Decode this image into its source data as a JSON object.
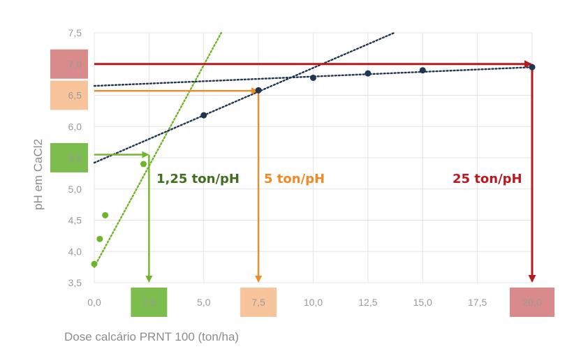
{
  "colors": {
    "background": "#ffffff",
    "grid": "#e3e3e3",
    "tick_text": "#9a9a9a",
    "green": "#6fb52a",
    "green_dark": "#3f6e1f",
    "green_box": "#7cbd4e",
    "orange": "#f08a24",
    "orange_box": "#f8c49c",
    "red": "#b7191f",
    "red_box": "#d98a8a",
    "navy": "#1f3550"
  },
  "chart_data": {
    "type": "scatter",
    "xlabel": "Dose calcário PRNT 100 (ton/ha)",
    "ylabel": "pH em CaCl2",
    "xlim": [
      0,
      20
    ],
    "ylim": [
      3.5,
      7.5
    ],
    "x_ticks": [
      "0,0",
      "2,5",
      "5,0",
      "7,5",
      "10,0",
      "12,5",
      "15,0",
      "17,5",
      "20,0"
    ],
    "x_tick_values": [
      0,
      2.5,
      5,
      7.5,
      10,
      12.5,
      15,
      17.5,
      20
    ],
    "y_ticks": [
      "3,5",
      "4,0",
      "4,5",
      "5,0",
      "5,5",
      "6,0",
      "6,5",
      "7,0",
      "7,5"
    ],
    "y_tick_values": [
      3.5,
      4.0,
      4.5,
      5.0,
      5.5,
      6.0,
      6.5,
      7.0,
      7.5
    ],
    "grid": true,
    "series": [
      {
        "color": "green",
        "marker": "circle",
        "points": [
          [
            0,
            3.8
          ],
          [
            0.25,
            4.2
          ],
          [
            0.5,
            4.58
          ],
          [
            2.25,
            5.4
          ]
        ],
        "trendline": {
          "from": [
            0,
            3.75
          ],
          "to": [
            5.8,
            7.5
          ],
          "style": "dotted"
        }
      },
      {
        "color": "navy",
        "marker": "circle",
        "points": [
          [
            5,
            6.18
          ],
          [
            7.5,
            6.58
          ],
          [
            10,
            6.78
          ],
          [
            12.5,
            6.85
          ],
          [
            15,
            6.9
          ],
          [
            20,
            6.95
          ]
        ],
        "trendline": {
          "from": [
            0,
            5.42
          ],
          "to": [
            13.7,
            7.5
          ],
          "style": "dotted"
        },
        "trendline2": {
          "from": [
            0,
            6.65
          ],
          "to": [
            20,
            6.95
          ],
          "style": "dotted"
        }
      }
    ],
    "guides": [
      {
        "color": "green",
        "y": 5.55,
        "x_end": 2.5
      },
      {
        "color": "orange",
        "y": 6.57,
        "x_end": 7.5
      },
      {
        "color": "red",
        "y": 7.0,
        "x_end": 20
      }
    ],
    "highlight_boxes": [
      {
        "axis": "y",
        "label": "5,5",
        "color": "green_box"
      },
      {
        "axis": "y",
        "label": "6,5",
        "color": "orange_box"
      },
      {
        "axis": "y",
        "label": "7,0",
        "color": "red_box"
      },
      {
        "axis": "x",
        "label": "2,5",
        "color": "green_box"
      },
      {
        "axis": "x",
        "label": "7,5",
        "color": "orange_box"
      },
      {
        "axis": "x",
        "label": "20,0",
        "color": "red_box"
      }
    ],
    "annotations": [
      {
        "text": "1,25 ton/pH",
        "color": "green_dark"
      },
      {
        "text": "5 ton/pH",
        "color": "orange"
      },
      {
        "text": "25 ton/pH",
        "color": "red"
      }
    ]
  }
}
